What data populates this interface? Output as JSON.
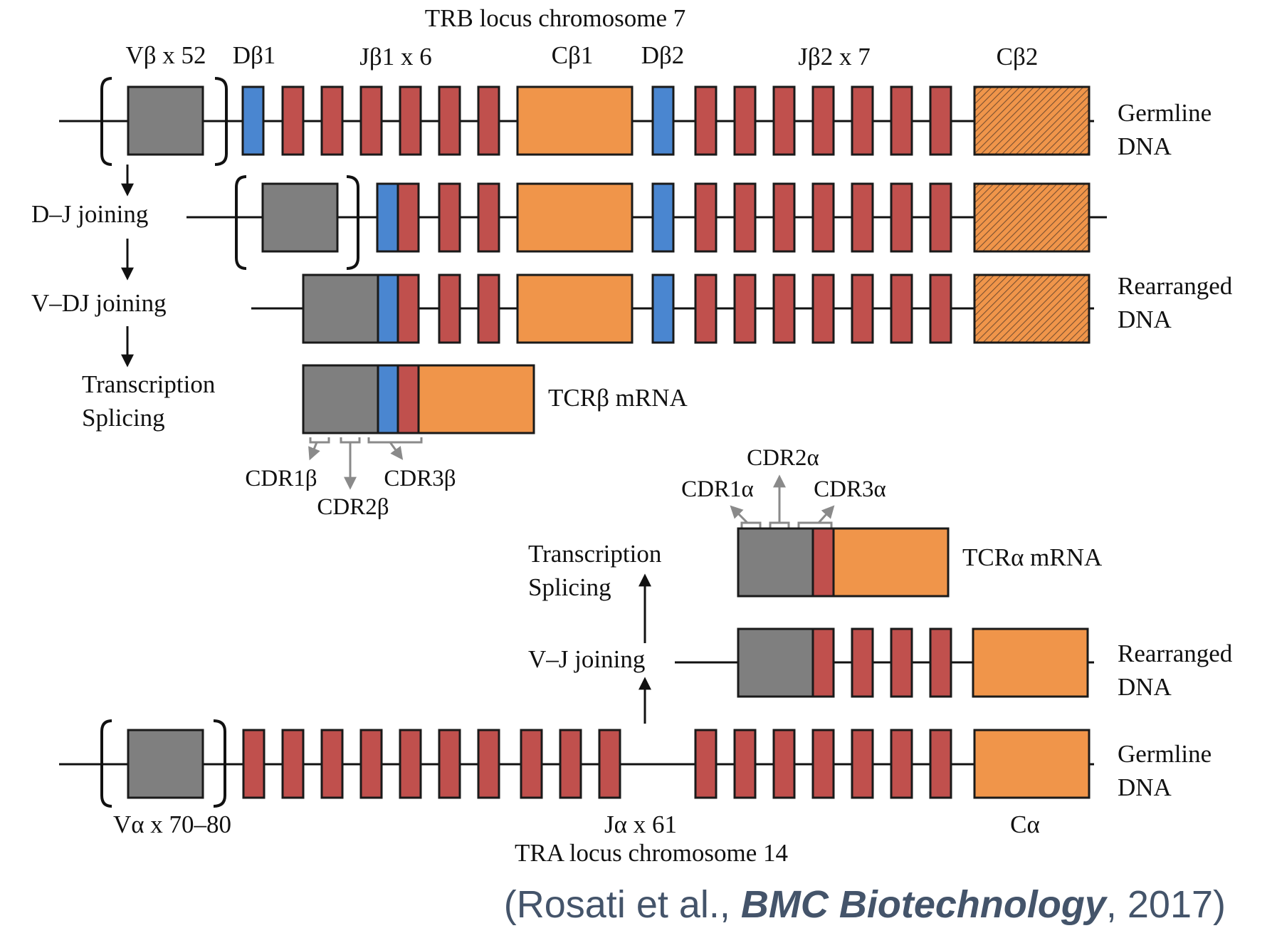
{
  "colors": {
    "V_segment": "#7f7f7f",
    "D_segment": "#4a86d0",
    "J_segment": "#c0504d",
    "C_segment": "#f0954a",
    "line": "#111111",
    "cdr_arrow": "#8a8a8a",
    "citation": "#44546a"
  },
  "trb": {
    "title": "TRB locus chromosome 7",
    "vb_label": "Vβ x 52",
    "db1_label": "Dβ1",
    "jb1_label": "Jβ1 x 6",
    "cb1_label": "Cβ1",
    "db2_label": "Dβ2",
    "jb2_label": "Jβ2 x 7",
    "cb2_label": "Cβ2",
    "germline_label_1": "Germline",
    "germline_label_2": "DNA",
    "dj_step": "D–J joining",
    "vdj_step": "V–DJ joining",
    "rearranged_label_1": "Rearranged",
    "rearranged_label_2": "DNA",
    "transcription_label": "Transcription",
    "splicing_label": "Splicing",
    "mrna_label": "TCRβ mRNA",
    "cdr1": "CDR1β",
    "cdr2": "CDR2β",
    "cdr3": "CDR3β"
  },
  "tra": {
    "title": "TRA locus chromosome 14",
    "va_label": "Vα x 70–80",
    "ja_label": "Jα x 61",
    "ca_label": "Cα",
    "germline_label_1": "Germline",
    "germline_label_2": "DNA",
    "vj_step": "V–J joining",
    "rearranged_label_1": "Rearranged",
    "rearranged_label_2": "DNA",
    "transcription_label": "Transcription",
    "splicing_label": "Splicing",
    "mrna_label": "TCRα mRNA",
    "cdr1": "CDR1α",
    "cdr2": "CDR2α",
    "cdr3": "CDR3α"
  },
  "citation": {
    "open": "(Rosati et al., ",
    "journal": "BMC Biotechnology",
    "close": ", 2017)"
  }
}
